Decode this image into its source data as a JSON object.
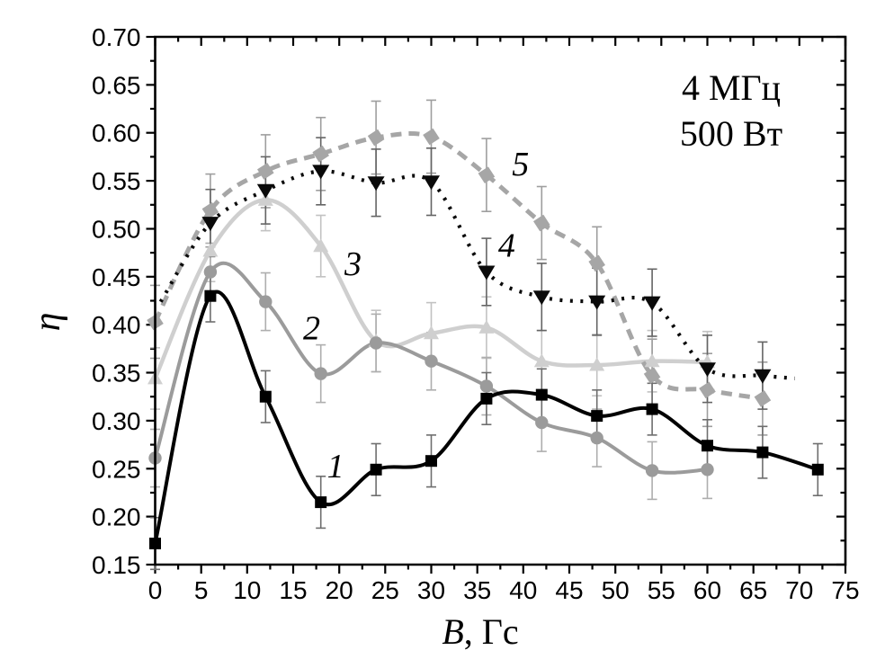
{
  "figure": {
    "background": "#ffffff",
    "y_axis_title": "η",
    "x_axis_title_italic": "B",
    "x_axis_title_rest": ", Гс"
  },
  "chart_data": {
    "type": "line",
    "title": "",
    "xlabel": "B, Гс",
    "ylabel": "η",
    "xlim": [
      0,
      75
    ],
    "ylim": [
      0.15,
      0.7
    ],
    "x_tick_major_step": 5,
    "x_tick_minor_step": 2.5,
    "y_tick_major_step": 0.05,
    "y_tick_minor_step": 0.025,
    "grid": false,
    "legend_position": "none - curves labeled inline with numbers 1-5",
    "annotations": [
      "4 МГц",
      "500 Вт"
    ],
    "series": [
      {
        "name": "3",
        "marker": "triangle-up",
        "line_style": "solid",
        "color": "#cfcfcf",
        "err_color": "#c2c2c2",
        "err": 0.032,
        "x": [
          0,
          6,
          12,
          18,
          24,
          30,
          36,
          42,
          48,
          54,
          60
        ],
        "y": [
          0.344,
          0.477,
          0.53,
          0.482,
          0.383,
          0.391,
          0.397,
          0.362,
          0.358,
          0.362,
          0.361
        ],
        "label_pos": [
          21.5,
          0.464
        ]
      },
      {
        "name": "2",
        "marker": "circle",
        "line_style": "solid",
        "color": "#9b9b9b",
        "err_color": "#aeaeae",
        "err": 0.03,
        "x": [
          0,
          6,
          12,
          18,
          24,
          30,
          36,
          42,
          48,
          54,
          60
        ],
        "y": [
          0.261,
          0.455,
          0.424,
          0.349,
          0.381,
          0.362,
          0.336,
          0.298,
          0.282,
          0.248,
          0.249
        ],
        "label_pos": [
          17.0,
          0.397
        ]
      },
      {
        "name": "5",
        "marker": "diamond",
        "line_style": "dashed",
        "color": "#a6a6a6",
        "err_color": "#9e9e9e",
        "err": 0.038,
        "x": [
          0,
          6,
          12,
          18,
          24,
          30,
          36,
          42,
          48,
          54,
          60,
          66
        ],
        "y": [
          0.403,
          0.519,
          0.56,
          0.578,
          0.595,
          0.596,
          0.556,
          0.506,
          0.464,
          0.347,
          0.332,
          0.323
        ],
        "label_pos": [
          39.7,
          0.568
        ]
      },
      {
        "name": "4",
        "marker": "triangle-down",
        "line_style": "dotted",
        "color": "#0a0a0a",
        "err_color": "#646464",
        "err": 0.035,
        "x": [
          6,
          12,
          18,
          24,
          30,
          36,
          42,
          48,
          54,
          60,
          66
        ],
        "y": [
          0.506,
          0.54,
          0.56,
          0.548,
          0.549,
          0.455,
          0.429,
          0.424,
          0.423,
          0.354,
          0.347
        ],
        "line_pre": [
          [
            0.6,
            0.424
          ]
        ],
        "line_post": [
          [
            69.5,
            0.344
          ]
        ],
        "label_pos": [
          38.2,
          0.483
        ]
      },
      {
        "name": "1",
        "marker": "square",
        "line_style": "solid",
        "color": "#000000",
        "err_color": "#6e6e6e",
        "err": 0.027,
        "x": [
          0,
          6,
          12,
          18,
          24,
          30,
          36,
          42,
          48,
          54,
          60,
          66,
          72
        ],
        "y": [
          0.172,
          0.43,
          0.325,
          0.215,
          0.249,
          0.258,
          0.323,
          0.327,
          0.305,
          0.312,
          0.274,
          0.267,
          0.249
        ],
        "label_pos": [
          19.6,
          0.253
        ]
      }
    ]
  }
}
